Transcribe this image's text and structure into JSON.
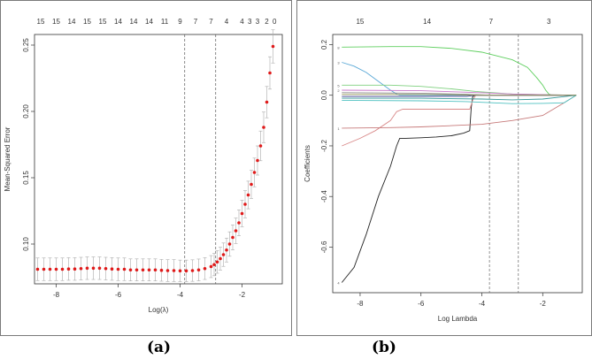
{
  "captions": {
    "a": "(a)",
    "b": "(b)"
  },
  "chart_data": [
    {
      "type": "scatter",
      "panel": "a",
      "xlabel": "Log(λ)",
      "ylabel": "Mean-Squared Error",
      "xlim": [
        -8.7,
        -0.7
      ],
      "ylim": [
        0.07,
        0.258
      ],
      "x_ticks": [
        -8,
        -6,
        -4,
        -2
      ],
      "x_tick_labels": [
        "-8",
        "-6",
        "-4",
        "-2"
      ],
      "y_ticks": [
        0.1,
        0.15,
        0.2,
        0.25
      ],
      "y_tick_labels": [
        "0.10",
        "0.15",
        "0.20",
        "0.25"
      ],
      "top_axis_labels": [
        "15",
        "15",
        "14",
        "15",
        "15",
        "14",
        "14",
        "14",
        "11",
        "9",
        "7",
        "7",
        "4",
        "4",
        "3",
        "3",
        "2",
        "0"
      ],
      "top_axis_positions": [
        -8.5,
        -8.0,
        -7.5,
        -7.0,
        -6.5,
        -6.0,
        -5.5,
        -5.0,
        -4.5,
        -4.0,
        -3.5,
        -3.0,
        -2.5,
        -2.0,
        -1.75,
        -1.5,
        -1.2,
        -0.95
      ],
      "vlines": [
        -3.85,
        -2.85
      ],
      "series": [
        {
          "name": "cv-mse",
          "x": [
            -8.6,
            -8.4,
            -8.2,
            -8.0,
            -7.8,
            -7.6,
            -7.4,
            -7.2,
            -7.0,
            -6.8,
            -6.6,
            -6.4,
            -6.2,
            -6.0,
            -5.8,
            -5.6,
            -5.4,
            -5.2,
            -5.0,
            -4.8,
            -4.6,
            -4.4,
            -4.2,
            -4.0,
            -3.8,
            -3.6,
            -3.4,
            -3.2,
            -3.0,
            -2.9,
            -2.8,
            -2.7,
            -2.6,
            -2.5,
            -2.4,
            -2.3,
            -2.2,
            -2.1,
            -2.0,
            -1.9,
            -1.8,
            -1.7,
            -1.6,
            -1.5,
            -1.4,
            -1.3,
            -1.2,
            -1.1,
            -1.0
          ],
          "y": [
            0.081,
            0.081,
            0.081,
            0.081,
            0.081,
            0.0812,
            0.0812,
            0.0815,
            0.0818,
            0.0818,
            0.0818,
            0.0815,
            0.0812,
            0.081,
            0.081,
            0.0805,
            0.0805,
            0.0805,
            0.0805,
            0.0805,
            0.0802,
            0.08,
            0.08,
            0.0798,
            0.0798,
            0.08,
            0.0805,
            0.0815,
            0.083,
            0.0845,
            0.0865,
            0.089,
            0.092,
            0.0955,
            0.1,
            0.105,
            0.11,
            0.116,
            0.123,
            0.13,
            0.137,
            0.145,
            0.154,
            0.163,
            0.174,
            0.188,
            0.207,
            0.229,
            0.249
          ],
          "error": [
            0.0085,
            0.0085,
            0.0085,
            0.0085,
            0.0085,
            0.0085,
            0.0085,
            0.0085,
            0.0085,
            0.0085,
            0.0085,
            0.0085,
            0.0085,
            0.0085,
            0.0085,
            0.0083,
            0.0083,
            0.0083,
            0.0083,
            0.0083,
            0.0082,
            0.0082,
            0.0082,
            0.0081,
            0.0081,
            0.0081,
            0.0082,
            0.0082,
            0.0083,
            0.0084,
            0.0085,
            0.0086,
            0.0088,
            0.009,
            0.0092,
            0.0094,
            0.0096,
            0.0098,
            0.01,
            0.0102,
            0.0104,
            0.0106,
            0.0108,
            0.011,
            0.0112,
            0.0115,
            0.0118,
            0.0122,
            0.0125
          ]
        }
      ],
      "colors": {
        "point": "#e01a1a",
        "errorbar": "#a9a9a9",
        "vline": "#555555"
      }
    },
    {
      "type": "line",
      "panel": "b",
      "xlabel": "Log Lambda",
      "ylabel": "Coefficients",
      "xlim": [
        -8.9,
        -0.7
      ],
      "ylim": [
        -0.78,
        0.24
      ],
      "x_ticks": [
        -8,
        -6,
        -4,
        -2
      ],
      "x_tick_labels": [
        "-8",
        "-6",
        "-4",
        "-2"
      ],
      "y_ticks": [
        -0.6,
        -0.4,
        -0.2,
        0.0,
        0.2
      ],
      "y_tick_labels": [
        "-0.6",
        "-0.4",
        "-0.2",
        "0.0",
        "0.2"
      ],
      "top_axis_labels": [
        "15",
        "14",
        "7",
        "3"
      ],
      "top_axis_positions": [
        -8.0,
        -5.8,
        -3.7,
        -1.8
      ],
      "vlines": [
        -3.75,
        -2.8
      ],
      "series": [
        {
          "name": "black",
          "color": "#222222",
          "x": [
            -8.6,
            -8.2,
            -7.8,
            -7.4,
            -7.0,
            -6.8,
            -6.7,
            -6.5,
            -6.0,
            -5.5,
            -5.0,
            -4.6,
            -4.4,
            -4.35,
            -4.3,
            -4.2,
            -3.0,
            -0.9
          ],
          "y": [
            -0.74,
            -0.68,
            -0.55,
            -0.4,
            -0.28,
            -0.2,
            -0.17,
            -0.17,
            -0.168,
            -0.165,
            -0.16,
            -0.15,
            -0.14,
            -0.05,
            -0.005,
            0.0,
            0.0,
            0.0
          ]
        },
        {
          "name": "green",
          "color": "#5fcf5f",
          "x": [
            -8.6,
            -7.0,
            -6.0,
            -5.0,
            -4.0,
            -3.0,
            -2.5,
            -2.2,
            -2.0,
            -1.9,
            -1.8,
            -1.7,
            -0.9
          ],
          "y": [
            0.19,
            0.192,
            0.192,
            0.185,
            0.17,
            0.14,
            0.11,
            0.07,
            0.04,
            0.02,
            0.005,
            0.0,
            0.0
          ]
        },
        {
          "name": "blue",
          "color": "#5aa8d6",
          "x": [
            -8.6,
            -8.2,
            -7.8,
            -7.4,
            -7.0,
            -6.8,
            -6.7,
            -0.9
          ],
          "y": [
            0.13,
            0.115,
            0.09,
            0.055,
            0.02,
            0.005,
            0.0,
            0.0
          ]
        },
        {
          "name": "pink",
          "color": "#d98a8a",
          "x": [
            -8.6,
            -8.0,
            -7.5,
            -7.0,
            -6.8,
            -6.6,
            -6.0,
            -5.0,
            -4.4,
            -4.3,
            -4.2,
            -3.0,
            -0.9
          ],
          "y": [
            -0.2,
            -0.17,
            -0.14,
            -0.1,
            -0.065,
            -0.055,
            -0.055,
            -0.055,
            -0.055,
            -0.02,
            0.0,
            0.0,
            0.0
          ]
        },
        {
          "name": "rose",
          "color": "#c77a7a",
          "x": [
            -8.6,
            -7.0,
            -6.0,
            -5.0,
            -4.0,
            -3.0,
            -2.0,
            -1.3,
            -0.9
          ],
          "y": [
            -0.13,
            -0.128,
            -0.125,
            -0.12,
            -0.115,
            -0.1,
            -0.08,
            -0.03,
            0.0
          ]
        },
        {
          "name": "lightgreen",
          "color": "#7fd07f",
          "x": [
            -8.6,
            -7.0,
            -6.0,
            -5.0,
            -4.2,
            -3.0,
            -0.9
          ],
          "y": [
            0.04,
            0.04,
            0.035,
            0.025,
            0.015,
            0.005,
            0.0
          ]
        },
        {
          "name": "magenta",
          "color": "#c978c9",
          "x": [
            -8.6,
            -6.0,
            -4.5,
            -3.6,
            -3.0,
            -2.0,
            -0.9
          ],
          "y": [
            0.02,
            0.018,
            0.012,
            0.008,
            0.005,
            0.002,
            0.0
          ]
        },
        {
          "name": "gray",
          "color": "#8c8c8c",
          "x": [
            -8.6,
            -6.0,
            -4.5,
            -3.7,
            -0.9
          ],
          "y": [
            0.01,
            0.008,
            0.004,
            0.0,
            0.0
          ]
        },
        {
          "name": "navy",
          "color": "#3c3c8c",
          "x": [
            -8.6,
            -6.0,
            -4.5,
            -4.2,
            -0.9
          ],
          "y": [
            -0.005,
            -0.005,
            -0.004,
            0.0,
            0.0
          ]
        },
        {
          "name": "cyan",
          "color": "#4fc1c1",
          "x": [
            -8.6,
            -6.0,
            -4.5,
            -3.6,
            -3.0,
            -2.0,
            -1.3,
            -0.9
          ],
          "y": [
            -0.02,
            -0.022,
            -0.025,
            -0.03,
            -0.033,
            -0.032,
            -0.03,
            0.0
          ]
        },
        {
          "name": "teal",
          "color": "#3a9a9a",
          "x": [
            -8.6,
            -6.0,
            -4.0,
            -3.0,
            -2.0,
            -0.9
          ],
          "y": [
            -0.012,
            -0.012,
            -0.015,
            -0.018,
            -0.015,
            0.0
          ]
        },
        {
          "name": "olive",
          "color": "#9a9a5a",
          "x": [
            -8.6,
            -6.5,
            -5.0,
            -4.2,
            -0.9
          ],
          "y": [
            0.003,
            0.003,
            0.002,
            0.0,
            0.0
          ]
        }
      ],
      "end_labels": [
        "8",
        "3",
        "5",
        "2",
        "1",
        "4"
      ],
      "colors": {
        "vline": "#666666"
      }
    }
  ]
}
